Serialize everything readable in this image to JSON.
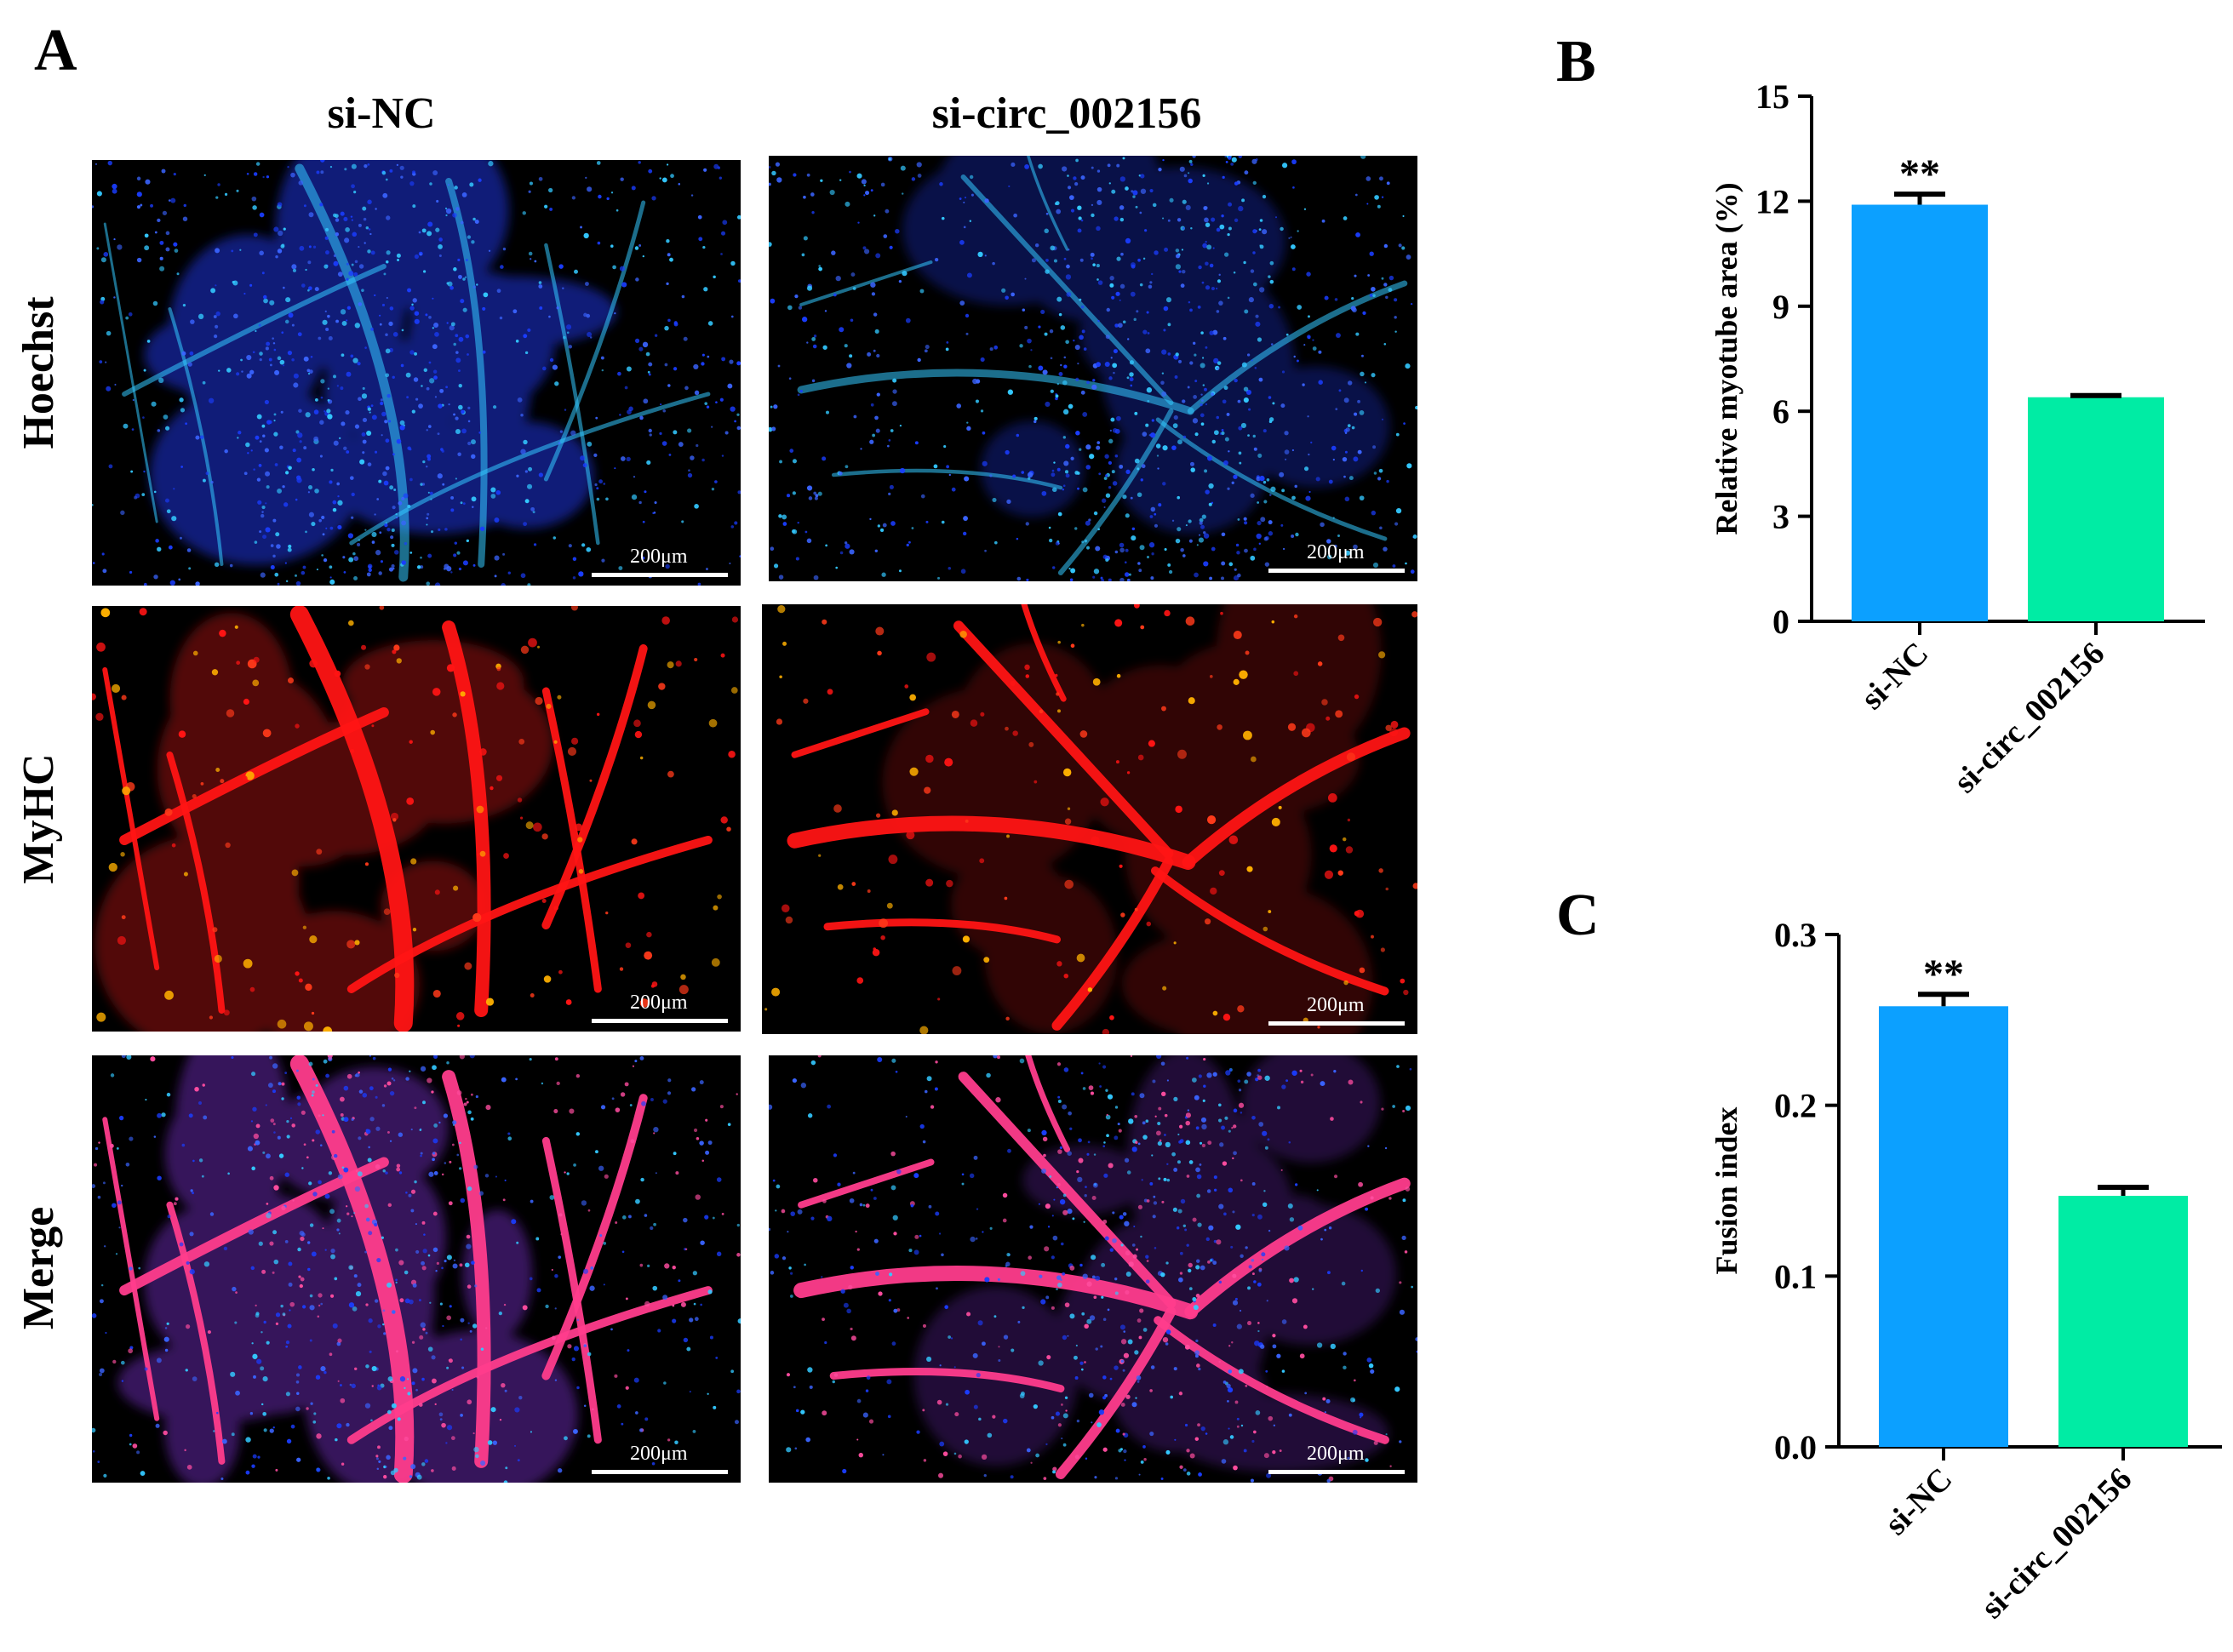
{
  "panel_a": {
    "letter": "A",
    "columns": [
      "si-NC",
      "si-circ_002156"
    ],
    "rows": [
      "Hoechst",
      "MyHC",
      "Merge"
    ],
    "scale_bar": "200μm",
    "colors": {
      "hoechst": "#1a3dff",
      "hoechst_bright": "#33c8ff",
      "myhc": "#ff1414",
      "merge": "#ff3c8c",
      "background": "#000000"
    }
  },
  "chart_data": [
    {
      "panel": "B",
      "type": "bar",
      "categories": [
        "si-NC",
        "si-circ_002156"
      ],
      "values": [
        11.9,
        6.4
      ],
      "errors": [
        0.3,
        0.05
      ],
      "annotations": [
        "**",
        ""
      ],
      "ylabel": "Relative myotube area (%)",
      "ylim": [
        0,
        15
      ],
      "yticks": [
        "0",
        "3",
        "6",
        "9",
        "12",
        "15"
      ],
      "colors": [
        "#0ca0ff",
        "#00eca4"
      ]
    },
    {
      "panel": "C",
      "type": "bar",
      "categories": [
        "si-NC",
        "si-circ_002156"
      ],
      "values": [
        0.258,
        0.147
      ],
      "errors": [
        0.007,
        0.005
      ],
      "annotations": [
        "**",
        ""
      ],
      "ylabel": "Fusion index",
      "ylim": [
        0,
        0.3
      ],
      "yticks": [
        "0.0",
        "0.1",
        "0.2",
        "0.3"
      ],
      "colors": [
        "#0ca0ff",
        "#00eca4"
      ]
    }
  ]
}
